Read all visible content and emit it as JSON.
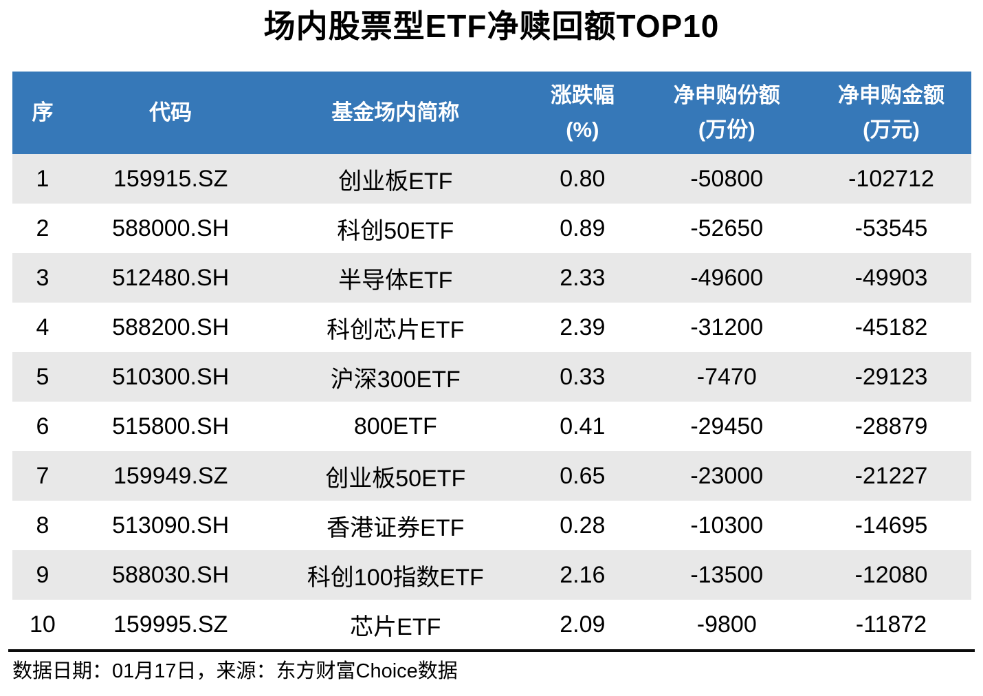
{
  "page": {
    "title": "场内股票型ETF净赎回额TOP10",
    "footer_note": "数据日期：01月17日，来源：东方财富Choice数据"
  },
  "colors": {
    "header_bg": "#3678B8",
    "header_text": "#FFFFFF",
    "row_stripe": "#E8E8E8",
    "row_plain": "#FFFFFF",
    "divider": "#0C0C0C"
  },
  "table": {
    "column_keys": [
      "index",
      "code",
      "fund-name",
      "change-pct",
      "net-shares",
      "net-amount"
    ],
    "columns": [
      {
        "line1": "序",
        "line2": ""
      },
      {
        "line1": "代码",
        "line2": ""
      },
      {
        "line1": "基金场内简称",
        "line2": ""
      },
      {
        "line1": "涨跌幅",
        "line2": "(%)"
      },
      {
        "line1": "净申购份额",
        "line2": "(万份)"
      },
      {
        "line1": "净申购金额",
        "line2": "(万元)"
      }
    ],
    "rows": [
      [
        "1",
        "159915.SZ",
        "创业板ETF",
        "0.80",
        "-50800",
        "-102712"
      ],
      [
        "2",
        "588000.SH",
        "科创50ETF",
        "0.89",
        "-52650",
        "-53545"
      ],
      [
        "3",
        "512480.SH",
        "半导体ETF",
        "2.33",
        "-49600",
        "-49903"
      ],
      [
        "4",
        "588200.SH",
        "科创芯片ETF",
        "2.39",
        "-31200",
        "-45182"
      ],
      [
        "5",
        "510300.SH",
        "沪深300ETF",
        "0.33",
        "-7470",
        "-29123"
      ],
      [
        "6",
        "515800.SH",
        "800ETF",
        "0.41",
        "-29450",
        "-28879"
      ],
      [
        "7",
        "159949.SZ",
        "创业板50ETF",
        "0.65",
        "-23000",
        "-21227"
      ],
      [
        "8",
        "513090.SH",
        "香港证券ETF",
        "0.28",
        "-10300",
        "-14695"
      ],
      [
        "9",
        "588030.SH",
        "科创100指数ETF",
        "2.16",
        "-13500",
        "-12080"
      ],
      [
        "10",
        "159995.SZ",
        "芯片ETF",
        "2.09",
        "-9800",
        "-11872"
      ]
    ]
  },
  "chart_data": {
    "type": "table",
    "title": "场内股票型ETF净赎回额TOP10",
    "columns": [
      "序",
      "代码",
      "基金场内简称",
      "涨跌幅(%)",
      "净申购份额(万份)",
      "净申购金额(万元)"
    ],
    "rows": [
      [
        1,
        "159915.SZ",
        "创业板ETF",
        0.8,
        -50800,
        -102712
      ],
      [
        2,
        "588000.SH",
        "科创50ETF",
        0.89,
        -52650,
        -53545
      ],
      [
        3,
        "512480.SH",
        "半导体ETF",
        2.33,
        -49600,
        -49903
      ],
      [
        4,
        "588200.SH",
        "科创芯片ETF",
        2.39,
        -31200,
        -45182
      ],
      [
        5,
        "510300.SH",
        "沪深300ETF",
        0.33,
        -7470,
        -29123
      ],
      [
        6,
        "515800.SH",
        "800ETF",
        0.41,
        -29450,
        -28879
      ],
      [
        7,
        "159949.SZ",
        "创业板50ETF",
        0.65,
        -23000,
        -21227
      ],
      [
        8,
        "513090.SH",
        "香港证券ETF",
        0.28,
        -10300,
        -14695
      ],
      [
        9,
        "588030.SH",
        "科创100指数ETF",
        2.16,
        -13500,
        -12080
      ],
      [
        10,
        "159995.SZ",
        "芯片ETF",
        2.09,
        -9800,
        -11872
      ]
    ],
    "source_note": "数据日期：01月17日，来源：东方财富Choice数据"
  }
}
